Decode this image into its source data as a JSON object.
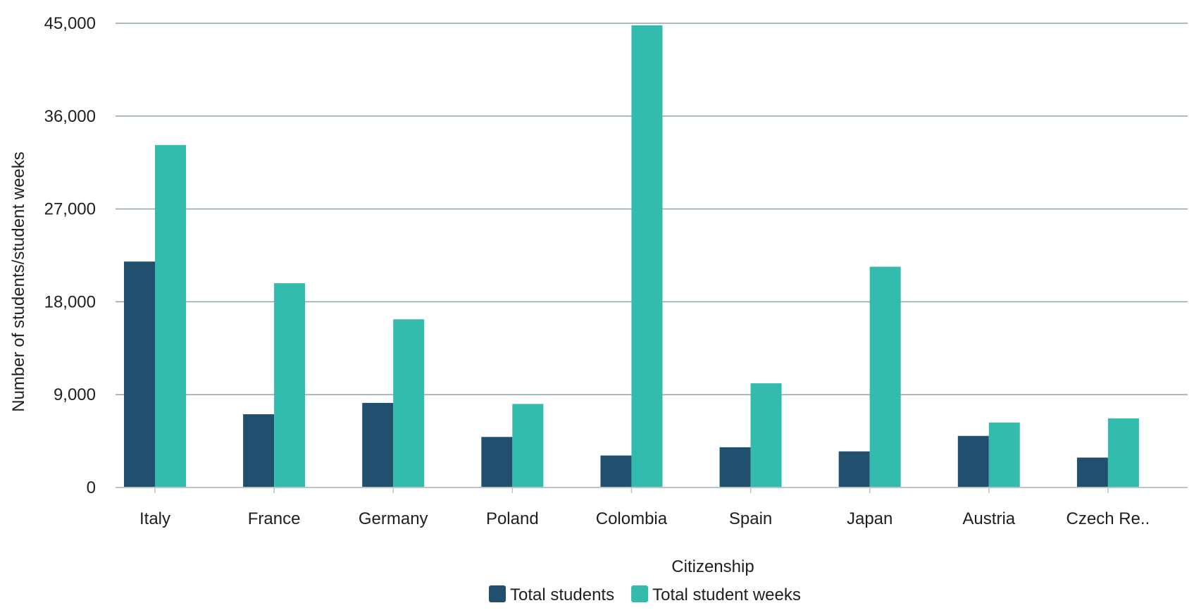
{
  "chart_data": {
    "type": "bar",
    "title": "",
    "xlabel": "Citizenship",
    "ylabel": "Number of students/student weeks",
    "categories": [
      "Italy",
      "France",
      "Germany",
      "Poland",
      "Colombia",
      "Spain",
      "Japan",
      "Austria",
      "Czech Re.."
    ],
    "series": [
      {
        "name": "Total students",
        "color": "#21506e",
        "values": [
          21900,
          7100,
          8200,
          4900,
          3100,
          3900,
          3500,
          5000,
          2900
        ]
      },
      {
        "name": "Total student weeks",
        "color": "#33bbad",
        "values": [
          33200,
          19800,
          16300,
          8100,
          44800,
          10100,
          21400,
          6300,
          6700
        ]
      }
    ],
    "ylim": [
      0,
      45000
    ],
    "yticks": [
      0,
      9000,
      18000,
      27000,
      36000,
      45000
    ],
    "ytick_labels": [
      "0",
      "9,000",
      "18,000",
      "27,000",
      "36,000",
      "45,000"
    ],
    "grid": true,
    "legend_position": "bottom-center"
  }
}
